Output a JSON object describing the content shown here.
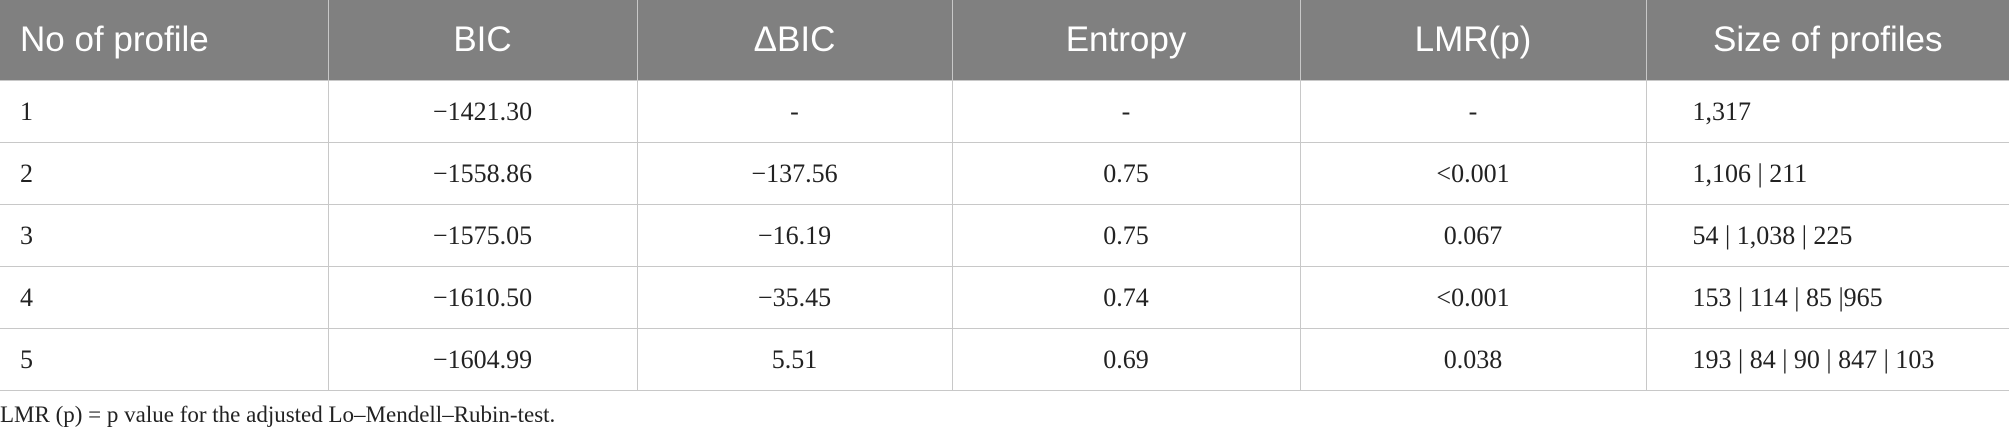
{
  "table": {
    "headers": [
      "No of profile",
      "BIC",
      "ΔBIC",
      "Entropy",
      "LMR(p)",
      "Size of profiles"
    ],
    "rows": [
      [
        "1",
        "−1421.30",
        "-",
        "-",
        "-",
        "1,317"
      ],
      [
        "2",
        "−1558.86",
        "−137.56",
        "0.75",
        "<0.001",
        "1,106 | 211"
      ],
      [
        "3",
        "−1575.05",
        "−16.19",
        "0.75",
        "0.067",
        "54 | 1,038 | 225"
      ],
      [
        "4",
        "−1610.50",
        "−35.45",
        "0.74",
        "<0.001",
        "153 | 114 | 85 |965"
      ],
      [
        "5",
        "−1604.99",
        "5.51",
        "0.69",
        "0.038",
        "193 | 84 | 90 | 847 | 103"
      ]
    ]
  },
  "footnote": "LMR (p) = p value for the adjusted Lo–Mendell–Rubin-test."
}
